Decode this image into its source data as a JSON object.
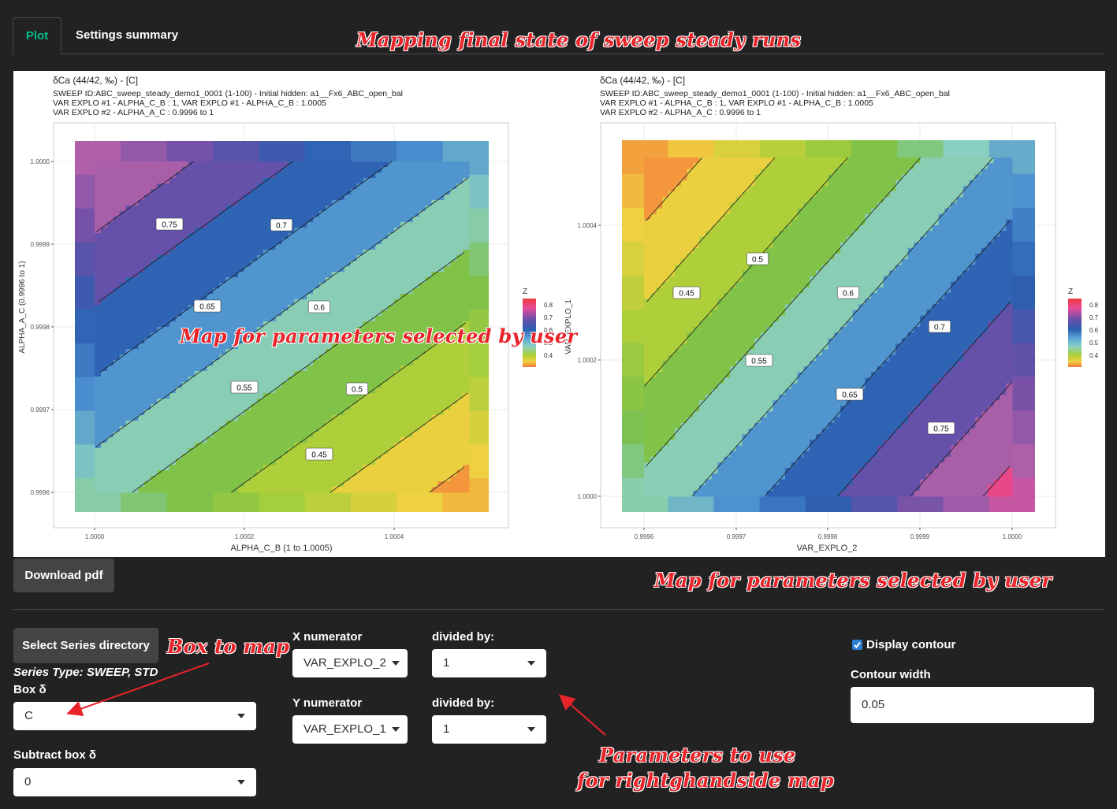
{
  "tabs": [
    {
      "label": "Plot",
      "active": true
    },
    {
      "label": "Settings summary",
      "active": false
    }
  ],
  "annotations": {
    "title": "Mapping final state of sweep steady runs",
    "center_map": "Map for parameters selected by user",
    "right_map": "Map for parameters selected by user",
    "box_to_map": "Box to map",
    "params_line1": "Parameters to use",
    "params_line2": "for rightghandside map"
  },
  "download_button": "Download pdf",
  "controls": {
    "select_series_button": "Select Series directory",
    "series_type": "Series Type: SWEEP, STD",
    "box_label": "Box δ",
    "box_value": "C",
    "subtract_label": "Subtract box δ",
    "subtract_value": "0",
    "x_numerator_label": "X numerator",
    "x_numerator_value": "VAR_EXPLO_2",
    "x_divided_label": "divided by:",
    "x_divided_value": "1",
    "y_numerator_label": "Y numerator",
    "y_numerator_value": "VAR_EXPLO_1",
    "y_divided_label": "divided by:",
    "y_divided_value": "1",
    "display_contour_label": "Display contour",
    "display_contour_checked": true,
    "contour_width_label": "Contour width",
    "contour_width_value": "0.05"
  },
  "chart_data": [
    {
      "type": "heatmap",
      "title": "δCa (44/42, ‰) - [C]",
      "subtitle_lines": [
        "SWEEP ID:ABC_sweep_steady_demo1_0001 (1-100) - Initial hidden: a1__Fx6_ABC_open_bal",
        "VAR EXPLO #1 -  ALPHA_C_B :  1, VAR EXPLO #1 -  ALPHA_C_B :  1.0005",
        "VAR EXPLO #2 -  ALPHA_A_C :  0.9996 to 1"
      ],
      "xlabel": "ALPHA_C_B (1 to 1.0005)",
      "ylabel": "ALPHA_A_C (0.9996 to 1)",
      "x_ticks": [
        "1.0000",
        "1.0002",
        "1.0004"
      ],
      "y_ticks": [
        "1.0000",
        "0.9999",
        "0.9998",
        "0.9997",
        "0.9996"
      ],
      "xlim": [
        0.99995,
        1.00053
      ],
      "ylim": [
        0.99955,
        1.00005
      ],
      "legend_title": "Z",
      "legend_ticks": [
        "0.8",
        "0.7",
        "0.6",
        "0.5",
        "0.4"
      ],
      "legend_position": "right",
      "contour_labels": [
        "0.75",
        "0.7",
        "0.65",
        "0.6",
        "0.55",
        "0.5",
        "0.45"
      ],
      "contour_levels": [
        0.4,
        0.45,
        0.5,
        0.55,
        0.6,
        0.65,
        0.7,
        0.75,
        0.8,
        0.85
      ],
      "z_range": [
        0.35,
        0.85
      ]
    },
    {
      "type": "heatmap",
      "title": "δCa (44/42, ‰) - [C]",
      "subtitle_lines": [
        "SWEEP ID:ABC_sweep_steady_demo1_0001 (1-100) - Initial hidden: a1__Fx6_ABC_open_bal",
        "VAR EXPLO #1 -  ALPHA_C_B :  1, VAR EXPLO #1 -  ALPHA_C_B :  1.0005",
        "VAR EXPLO #2 -  ALPHA_A_C :  0.9996 to 1"
      ],
      "xlabel": "VAR_EXPLO_2",
      "ylabel": "VAR_EXPLO_1",
      "x_ticks": [
        "0.9996",
        "0.9997",
        "0.9998",
        "0.9999",
        "1.0000"
      ],
      "y_ticks": [
        "1.0004",
        "1.0002",
        "1.0000"
      ],
      "xlim": [
        0.99955,
        1.00005
      ],
      "ylim": [
        0.99995,
        1.00053
      ],
      "legend_title": "Z",
      "legend_ticks": [
        "0.8",
        "0.7",
        "0.6",
        "0.5",
        "0.4"
      ],
      "legend_position": "right",
      "contour_labels": [
        "0.5",
        "0.45",
        "0.6",
        "0.55",
        "0.7",
        "0.65",
        "0.75"
      ],
      "contour_levels": [
        0.4,
        0.45,
        0.5,
        0.55,
        0.6,
        0.65,
        0.7,
        0.75,
        0.8,
        0.85
      ],
      "z_range": [
        0.35,
        0.85
      ]
    }
  ]
}
